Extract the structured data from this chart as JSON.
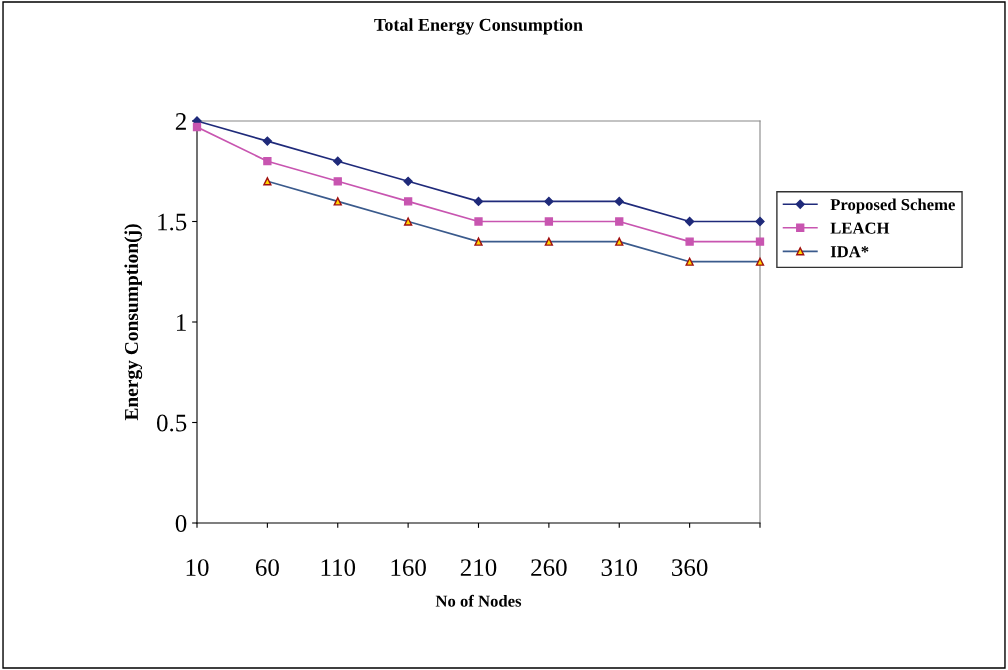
{
  "chart_data": {
    "type": "line",
    "title": "Total Energy Consumption",
    "xlabel": "No of Nodes",
    "ylabel": "Energy Consumption(j)",
    "categories": [
      "10",
      "60",
      "110",
      "160",
      "210",
      "260",
      "310",
      "360",
      null
    ],
    "ylim": [
      0,
      2
    ],
    "yticks": [
      0,
      0.5,
      1,
      1.5,
      2
    ],
    "grid": false,
    "legend": "right",
    "line_style": "solid",
    "series": [
      {
        "name": "Proposed Scheme",
        "color": "#1f2a7a",
        "marker": "diamond",
        "values": [
          2,
          1.9,
          1.8,
          1.7,
          1.6,
          1.6,
          1.6,
          1.5,
          1.5
        ]
      },
      {
        "name": "LEACH",
        "color": "#c855b0",
        "marker": "square",
        "values": [
          1.97,
          1.8,
          1.7,
          1.6,
          1.5,
          1.5,
          1.5,
          1.4,
          1.4
        ]
      },
      {
        "name": "IDA*",
        "color": "#3a5a8c",
        "marker": "triangle",
        "values": [
          null,
          1.7,
          1.6,
          1.5,
          1.4,
          1.4,
          1.4,
          1.3,
          1.3
        ]
      }
    ]
  }
}
